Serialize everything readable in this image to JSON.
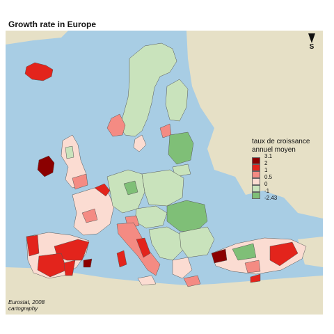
{
  "title": "Growth rate in Europe",
  "north": {
    "label": "S",
    "icon": "north-arrow-icon"
  },
  "legend": {
    "title_line1": "taux de croissance",
    "title_line2": "annuel moyen",
    "breaks": [
      "3.1",
      "2",
      "1",
      "0.5",
      "0",
      "-1",
      "-2.43"
    ],
    "colors": [
      "#8b0000",
      "#e3241c",
      "#f48b83",
      "#fbdcd2",
      "#c9e3bc",
      "#7fbf77"
    ]
  },
  "credit": {
    "line1": "Eurostat, 2008",
    "line2": "cartography"
  },
  "colors": {
    "sea": "#a8cde4",
    "land_other": "#e6e0c6",
    "border": "#555555"
  }
}
